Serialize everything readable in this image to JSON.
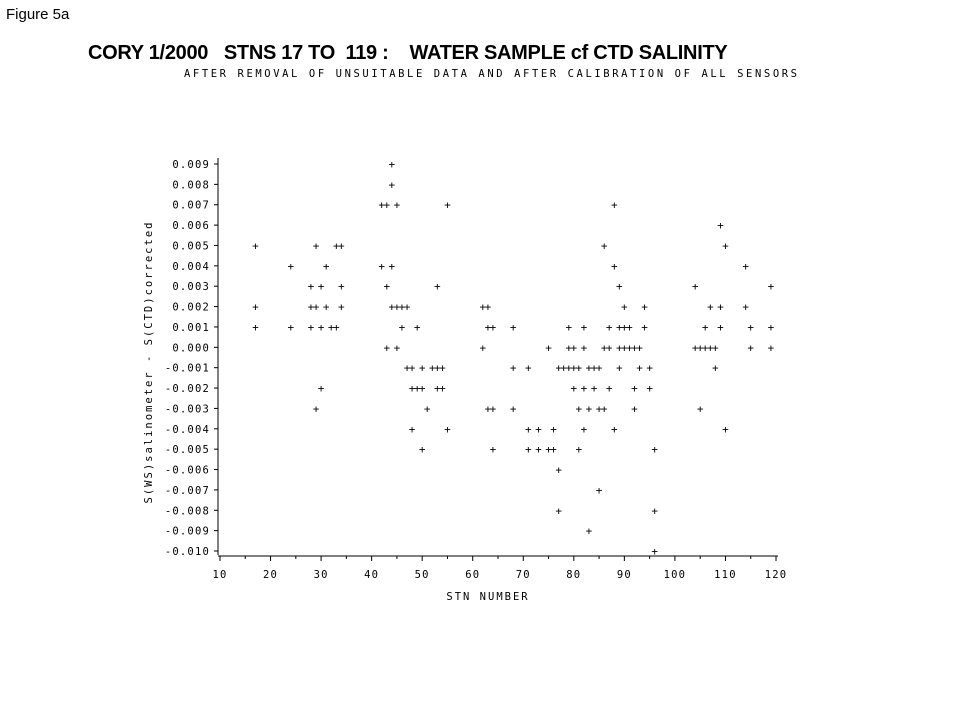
{
  "figure_label": "Figure 5a",
  "chart_data": {
    "type": "scatter",
    "title": "CORY 1/2000   STNS 17 TO  119 :    WATER SAMPLE cf CTD SALINITY",
    "subtitle": "AFTER REMOVAL OF UNSUITABLE DATA AND AFTER CALIBRATION OF ALL SENSORS",
    "xlabel": "STN NUMBER",
    "ylabel": "S(WS)salinometer - S(CTD)corrected",
    "xlim": [
      10,
      120
    ],
    "ylim": [
      -0.01,
      0.009
    ],
    "x_ticks": [
      "10",
      "20",
      "30",
      "40",
      "50",
      "60",
      "70",
      "80",
      "90",
      "100",
      "110",
      "120"
    ],
    "y_ticks": [
      "0.009",
      "0.008",
      "0.007",
      "0.006",
      "0.005",
      "0.004",
      "0.003",
      "0.002",
      "0.001",
      "0.000",
      "-0.001",
      "-0.002",
      "-0.003",
      "-0.004",
      "-0.005",
      "-0.006",
      "-0.007",
      "-0.008",
      "-0.009",
      "-0.010"
    ],
    "marker": "+",
    "grid": false,
    "points": [
      [
        17,
        0.005
      ],
      [
        17,
        0.002
      ],
      [
        17,
        0.001
      ],
      [
        24,
        0.004
      ],
      [
        24,
        0.001
      ],
      [
        28,
        0.003
      ],
      [
        28,
        0.002
      ],
      [
        28,
        0.001
      ],
      [
        29,
        0.005
      ],
      [
        29,
        0.002
      ],
      [
        29,
        -0.003
      ],
      [
        30,
        0.003
      ],
      [
        30,
        0.001
      ],
      [
        30,
        -0.002
      ],
      [
        31,
        0.004
      ],
      [
        31,
        0.002
      ],
      [
        32,
        0.001
      ],
      [
        33,
        0.001
      ],
      [
        33,
        0.005
      ],
      [
        34,
        0.005
      ],
      [
        34,
        0.003
      ],
      [
        34,
        0.002
      ],
      [
        42,
        0.007
      ],
      [
        42,
        0.004
      ],
      [
        43,
        0.007
      ],
      [
        43,
        0.003
      ],
      [
        43,
        0.0
      ],
      [
        44,
        0.009
      ],
      [
        44,
        0.008
      ],
      [
        44,
        0.004
      ],
      [
        44,
        0.002
      ],
      [
        45,
        0.007
      ],
      [
        45,
        0.0
      ],
      [
        45,
        0.002
      ],
      [
        46,
        0.002
      ],
      [
        46,
        0.001
      ],
      [
        47,
        0.002
      ],
      [
        47,
        -0.001
      ],
      [
        48,
        -0.001
      ],
      [
        48,
        -0.002
      ],
      [
        48,
        -0.004
      ],
      [
        49,
        -0.002
      ],
      [
        49,
        0.001
      ],
      [
        50,
        -0.001
      ],
      [
        50,
        -0.002
      ],
      [
        50,
        -0.005
      ],
      [
        51,
        -0.003
      ],
      [
        52,
        -0.001
      ],
      [
        53,
        0.003
      ],
      [
        53,
        -0.001
      ],
      [
        53,
        -0.002
      ],
      [
        54,
        -0.001
      ],
      [
        54,
        -0.002
      ],
      [
        55,
        0.007
      ],
      [
        55,
        -0.004
      ],
      [
        62,
        0.002
      ],
      [
        62,
        0.0
      ],
      [
        63,
        0.002
      ],
      [
        63,
        0.001
      ],
      [
        63,
        -0.003
      ],
      [
        64,
        0.001
      ],
      [
        64,
        -0.003
      ],
      [
        64,
        -0.005
      ],
      [
        68,
        0.001
      ],
      [
        68,
        -0.001
      ],
      [
        68,
        -0.003
      ],
      [
        71,
        -0.001
      ],
      [
        71,
        -0.004
      ],
      [
        71,
        -0.005
      ],
      [
        73,
        -0.004
      ],
      [
        73,
        -0.005
      ],
      [
        75,
        0.0
      ],
      [
        75,
        -0.005
      ],
      [
        76,
        -0.004
      ],
      [
        76,
        -0.005
      ],
      [
        77,
        -0.001
      ],
      [
        77,
        -0.006
      ],
      [
        77,
        -0.008
      ],
      [
        78,
        -0.001
      ],
      [
        79,
        -0.001
      ],
      [
        79,
        0.001
      ],
      [
        79,
        0.0
      ],
      [
        80,
        -0.001
      ],
      [
        80,
        0.0
      ],
      [
        80,
        -0.002
      ],
      [
        81,
        -0.001
      ],
      [
        81,
        -0.003
      ],
      [
        81,
        -0.005
      ],
      [
        82,
        0.001
      ],
      [
        82,
        0.0
      ],
      [
        82,
        -0.002
      ],
      [
        82,
        -0.004
      ],
      [
        83,
        -0.001
      ],
      [
        83,
        -0.003
      ],
      [
        83,
        -0.009
      ],
      [
        84,
        -0.001
      ],
      [
        84,
        -0.002
      ],
      [
        85,
        -0.001
      ],
      [
        85,
        -0.003
      ],
      [
        85,
        -0.007
      ],
      [
        86,
        -0.003
      ],
      [
        86,
        0.0
      ],
      [
        86,
        0.005
      ],
      [
        87,
        0.001
      ],
      [
        87,
        0.0
      ],
      [
        87,
        -0.002
      ],
      [
        88,
        0.007
      ],
      [
        88,
        0.004
      ],
      [
        88,
        -0.004
      ],
      [
        89,
        0.003
      ],
      [
        89,
        0.001
      ],
      [
        89,
        0.0
      ],
      [
        89,
        -0.001
      ],
      [
        90,
        0.002
      ],
      [
        90,
        0.001
      ],
      [
        90,
        0.0
      ],
      [
        91,
        0.001
      ],
      [
        91,
        0.0
      ],
      [
        92,
        0.0
      ],
      [
        92,
        -0.002
      ],
      [
        92,
        -0.003
      ],
      [
        93,
        0.0
      ],
      [
        93,
        -0.001
      ],
      [
        94,
        0.002
      ],
      [
        94,
        0.001
      ],
      [
        95,
        -0.001
      ],
      [
        95,
        -0.002
      ],
      [
        96,
        -0.005
      ],
      [
        96,
        -0.008
      ],
      [
        96,
        -0.01
      ],
      [
        104,
        0.003
      ],
      [
        104,
        0.0
      ],
      [
        105,
        0.0
      ],
      [
        105,
        -0.003
      ],
      [
        106,
        0.001
      ],
      [
        106,
        0.0
      ],
      [
        107,
        0.002
      ],
      [
        107,
        0.0
      ],
      [
        108,
        0.0
      ],
      [
        108,
        -0.001
      ],
      [
        109,
        0.006
      ],
      [
        109,
        0.002
      ],
      [
        109,
        0.001
      ],
      [
        110,
        0.005
      ],
      [
        110,
        -0.004
      ],
      [
        114,
        0.004
      ],
      [
        114,
        0.002
      ],
      [
        115,
        0.001
      ],
      [
        115,
        0.0
      ],
      [
        119,
        0.003
      ],
      [
        119,
        0.001
      ],
      [
        119,
        0.0
      ]
    ]
  }
}
